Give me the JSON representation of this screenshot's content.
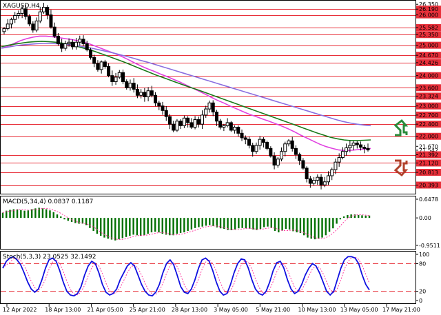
{
  "chart_data": {
    "type": "candlestick",
    "symbol_label": "XAGUSD,H4",
    "price_panel": {
      "ylim": [
        20.2,
        26.4
      ],
      "price_ticks": [
        "26.350",
        "26.190",
        "26.000",
        "25.582",
        "25.350",
        "25.000",
        "24.670",
        "24.426",
        "24.000",
        "23.600",
        "23.324",
        "23.000",
        "22.700",
        "22.400",
        "22.000",
        "21.670",
        "21.542",
        "21.392",
        "21.120",
        "20.813",
        "20.393"
      ],
      "levels": [
        26.19,
        26.0,
        25.582,
        25.35,
        25.0,
        24.67,
        24.426,
        24.0,
        23.6,
        23.324,
        23.0,
        22.7,
        22.4,
        22.0,
        21.392,
        21.12,
        20.813,
        20.393
      ],
      "level_color": "#e8303a",
      "candle_closes": [
        25.55,
        25.7,
        25.85,
        25.98,
        26.05,
        26.2,
        25.95,
        25.7,
        25.5,
        25.8,
        26.1,
        26.25,
        26.0,
        25.6,
        25.3,
        25.05,
        24.9,
        25.05,
        25.1,
        24.95,
        25.1,
        25.2,
        25.05,
        24.85,
        24.6,
        24.4,
        24.2,
        24.45,
        24.3,
        24.0,
        23.8,
        23.95,
        24.1,
        23.8,
        23.6,
        23.75,
        23.55,
        23.35,
        23.45,
        23.3,
        23.5,
        23.35,
        23.1,
        23.0,
        22.85,
        22.65,
        22.4,
        22.2,
        22.5,
        22.35,
        22.6,
        22.45,
        22.3,
        22.55,
        22.4,
        22.7,
        22.9,
        23.1,
        22.8,
        22.5,
        22.3,
        22.35,
        22.45,
        22.2,
        22.3,
        22.1,
        21.95,
        21.9,
        21.7,
        21.5,
        21.7,
        21.9,
        21.8,
        21.6,
        21.35,
        21.05,
        21.25,
        21.5,
        21.75,
        21.85,
        21.6,
        21.4,
        21.2,
        20.95,
        20.6,
        20.45,
        20.55,
        20.65,
        20.4,
        20.5,
        20.7,
        20.9,
        21.15,
        21.3,
        21.5,
        21.62,
        21.7,
        21.78,
        21.72,
        21.64,
        21.6,
        21.55
      ],
      "ma_series": [
        {
          "color": "#e040e0",
          "values": [
            24.9,
            24.97,
            25.06,
            25.15,
            25.22,
            25.27,
            25.3,
            25.3,
            25.28,
            25.25,
            25.22,
            25.19,
            25.15,
            25.1,
            25.03,
            24.95,
            24.87,
            24.79,
            24.71,
            24.62,
            24.52,
            24.41,
            24.31,
            24.22,
            24.14,
            24.05,
            23.97,
            23.88,
            23.79,
            23.69,
            23.59,
            23.49,
            23.39,
            23.28,
            23.18,
            23.09,
            22.99,
            22.9,
            22.81,
            22.72,
            22.65,
            22.57,
            22.5,
            22.42,
            22.34,
            22.25,
            22.15,
            22.04,
            21.94,
            21.84,
            21.74,
            21.66,
            21.6,
            21.55,
            21.53,
            21.54,
            21.56,
            21.58,
            21.6
          ]
        },
        {
          "color": "#1a7a1a",
          "values": [
            24.95,
            25.0,
            25.04,
            25.07,
            25.1,
            25.12,
            25.13,
            25.12,
            25.1,
            25.07,
            25.03,
            24.98,
            24.92,
            24.86,
            24.79,
            24.71,
            24.63,
            24.55,
            24.47,
            24.38,
            24.29,
            24.2,
            24.11,
            24.02,
            23.94,
            23.86,
            23.78,
            23.7,
            23.62,
            23.55,
            23.47,
            23.39,
            23.31,
            23.23,
            23.15,
            23.07,
            22.99,
            22.91,
            22.83,
            22.75,
            22.67,
            22.59,
            22.51,
            22.43,
            22.35,
            22.27,
            22.19,
            22.11,
            22.04,
            21.97,
            21.92,
            21.88,
            21.86,
            21.86,
            21.87,
            21.88
          ]
        },
        {
          "color": "#8a6fe0",
          "values": [
            24.9,
            24.94,
            24.98,
            25.01,
            25.03,
            25.05,
            25.06,
            25.06,
            25.05,
            25.03,
            25.01,
            24.98,
            24.94,
            24.9,
            24.85,
            24.8,
            24.75,
            24.69,
            24.63,
            24.57,
            24.5,
            24.44,
            24.37,
            24.3,
            24.23,
            24.16,
            24.09,
            24.02,
            23.95,
            23.88,
            23.81,
            23.74,
            23.67,
            23.6,
            23.53,
            23.46,
            23.39,
            23.32,
            23.25,
            23.18,
            23.11,
            23.04,
            22.97,
            22.9,
            22.83,
            22.76,
            22.69,
            22.62,
            22.55,
            22.49,
            22.44,
            22.4,
            22.37,
            22.35
          ]
        }
      ]
    },
    "macd_panel": {
      "label": "MACD(5,34,4) 0.0837 0.1187",
      "ticks": [
        "0.6478",
        "0.00",
        "-0.9511"
      ],
      "ylim": [
        -0.9511,
        0.6478
      ],
      "histogram": [
        0.18,
        0.25,
        0.28,
        0.3,
        0.3,
        0.27,
        0.25,
        0.26,
        0.3,
        0.33,
        0.35,
        0.33,
        0.3,
        0.26,
        0.2,
        0.12,
        0.05,
        -0.05,
        -0.1,
        -0.14,
        -0.18,
        -0.2,
        -0.2,
        -0.25,
        -0.35,
        -0.45,
        -0.55,
        -0.62,
        -0.68,
        -0.72,
        -0.75,
        -0.78,
        -0.74,
        -0.7,
        -0.66,
        -0.62,
        -0.58,
        -0.6,
        -0.62,
        -0.6,
        -0.55,
        -0.5,
        -0.48,
        -0.5,
        -0.55,
        -0.58,
        -0.6,
        -0.6,
        -0.55,
        -0.52,
        -0.5,
        -0.45,
        -0.4,
        -0.35,
        -0.32,
        -0.3,
        -0.27,
        -0.25,
        -0.28,
        -0.33,
        -0.36,
        -0.38,
        -0.42,
        -0.42,
        -0.4,
        -0.36,
        -0.35,
        -0.36,
        -0.38,
        -0.4,
        -0.42,
        -0.38,
        -0.32,
        -0.3,
        -0.35,
        -0.45,
        -0.5,
        -0.44,
        -0.38,
        -0.4,
        -0.46,
        -0.5,
        -0.52,
        -0.6,
        -0.68,
        -0.72,
        -0.74,
        -0.72,
        -0.68,
        -0.6,
        -0.48,
        -0.36,
        -0.2,
        -0.05,
        0.05,
        0.1,
        0.12,
        0.12,
        0.1,
        0.09,
        0.08,
        0.08
      ],
      "histogram_color": "#007000",
      "signal_color": "#ff3aa0"
    },
    "stoch_panel": {
      "label": "Stoch(5,3,3) 23.0525 32.1492",
      "ticks": [
        "100",
        "80",
        "20",
        "0"
      ],
      "ylim": [
        0,
        100
      ],
      "levels": [
        80,
        20
      ],
      "main_color": "#1010e0",
      "signal_color": "#ff3aa0",
      "main": [
        70,
        85,
        92,
        95,
        88,
        78,
        60,
        40,
        25,
        18,
        25,
        45,
        70,
        88,
        92,
        85,
        65,
        40,
        20,
        12,
        10,
        15,
        30,
        55,
        75,
        85,
        80,
        60,
        35,
        18,
        12,
        15,
        25,
        45,
        60,
        75,
        82,
        75,
        55,
        35,
        20,
        12,
        10,
        18,
        35,
        60,
        80,
        88,
        78,
        55,
        30,
        18,
        15,
        25,
        45,
        70,
        88,
        92,
        85,
        65,
        40,
        20,
        12,
        15,
        35,
        60,
        80,
        90,
        88,
        70,
        45,
        25,
        15,
        12,
        20,
        40,
        65,
        82,
        85,
        70,
        45,
        25,
        15,
        20,
        35,
        55,
        70,
        80,
        75,
        60,
        40,
        20,
        12,
        20,
        45,
        70,
        88,
        95,
        95,
        92,
        80,
        55,
        35,
        23
      ]
    },
    "time_axis": [
      "12 Apr 2022",
      "18 Apr 13:00",
      "21 Apr 05:00",
      "25 Apr 21:00",
      "28 Apr 13:00",
      "3 May 05:00",
      "5 May 21:00",
      "10 May 13:00",
      "13 May 05:00",
      "17 May 21:00"
    ],
    "arrow_up_color": "#2a8a3a",
    "arrow_down_color": "#b0402a"
  }
}
